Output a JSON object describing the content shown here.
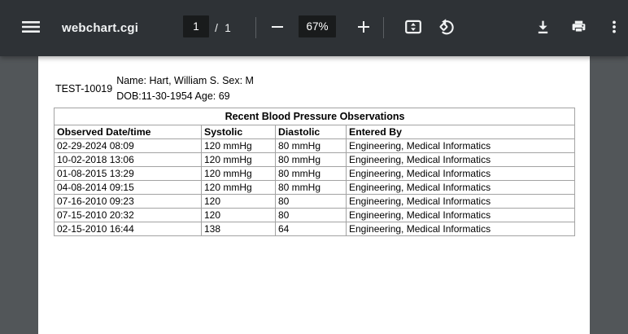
{
  "toolbar": {
    "title": "webchart.cgi",
    "page_current": "1",
    "page_separator": "/",
    "page_total": "1",
    "zoom_level": "67%",
    "icons": [
      "menu-icon",
      "zoom-out-icon",
      "zoom-in-icon",
      "fit-to-page-icon",
      "rotate-counterclockwise-icon",
      "download-icon",
      "print-icon",
      "more-options-icon"
    ]
  },
  "colors": {
    "toolbar_bg": "#2e3236",
    "viewer_bg": "#525659",
    "field_bg": "#191b1c",
    "toolbar_fg": "#f1f3f4",
    "page_bg": "#ffffff",
    "table_border": "#a3a3a3"
  },
  "document": {
    "patient_id": "TEST-10019",
    "patient_info_line1": "Name: Hart, William S. Sex: M",
    "patient_info_line2": "DOB:11-30-1954 Age: 69",
    "table": {
      "title": "Recent Blood Pressure Observations",
      "columns": [
        "Observed Date/time",
        "Systolic",
        "Diastolic",
        "Entered By"
      ],
      "rows": [
        [
          "02-29-2024 08:09",
          "120 mmHg",
          "80 mmHg",
          "Engineering, Medical Informatics"
        ],
        [
          "10-02-2018 13:06",
          "120 mmHg",
          "80 mmHg",
          "Engineering, Medical Informatics"
        ],
        [
          "01-08-2015 13:29",
          "120 mmHg",
          "80 mmHg",
          "Engineering, Medical Informatics"
        ],
        [
          "04-08-2014 09:15",
          "120 mmHg",
          "80 mmHg",
          "Engineering, Medical Informatics"
        ],
        [
          "07-16-2010 09:23",
          "120",
          "80",
          "Engineering, Medical Informatics"
        ],
        [
          "07-15-2010 20:32",
          "120",
          "80",
          "Engineering, Medical Informatics"
        ],
        [
          "02-15-2010 16:44",
          "138",
          "64",
          "Engineering, Medical Informatics"
        ]
      ]
    }
  }
}
